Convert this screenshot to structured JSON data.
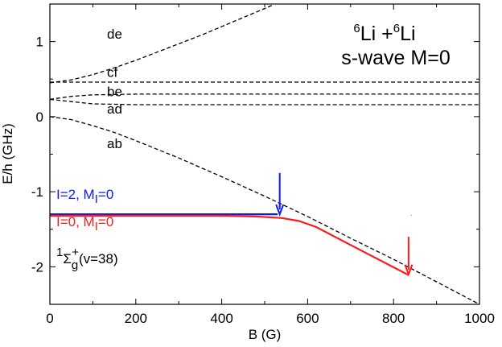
{
  "chart_data": {
    "type": "line",
    "title_lines": [
      "6Li + 6Li",
      "s-wave M=0"
    ],
    "title_parts": {
      "sup1": "6",
      "elem1": "Li +",
      "sup2": "6",
      "elem2": "Li",
      "line2": "s-wave M=0"
    },
    "xlabel": "B (G)",
    "ylabel": "E/h (GHz)",
    "xlim": [
      0,
      1000
    ],
    "ylim": [
      -2.5,
      1.5
    ],
    "xticks": [
      0,
      200,
      400,
      600,
      800,
      1000
    ],
    "yticks": [
      -2,
      -1,
      0,
      1
    ],
    "grid": false,
    "thresholds": [
      {
        "name": "de",
        "style": "dashed",
        "color": "#000000",
        "points": [
          [
            0,
            0.45
          ],
          [
            50,
            0.49
          ],
          [
            100,
            0.56
          ],
          [
            150,
            0.65
          ],
          [
            200,
            0.75
          ],
          [
            250,
            0.86
          ],
          [
            300,
            0.97
          ],
          [
            350,
            1.08
          ],
          [
            400,
            1.2
          ],
          [
            450,
            1.32
          ],
          [
            500,
            1.44
          ],
          [
            520,
            1.49
          ]
        ],
        "label_at": [
          133,
          1.04
        ]
      },
      {
        "name": "cf",
        "style": "dashed",
        "color": "#000000",
        "points": [
          [
            0,
            0.46
          ],
          [
            1000,
            0.46
          ]
        ],
        "label_at": [
          133,
          0.53
        ]
      },
      {
        "name": "be",
        "style": "dashed",
        "color": "#000000",
        "points": [
          [
            0,
            0.23
          ],
          [
            50,
            0.27
          ],
          [
            100,
            0.29
          ],
          [
            200,
            0.3
          ],
          [
            1000,
            0.3
          ]
        ],
        "label_at": [
          133,
          0.27
        ]
      },
      {
        "name": "ad",
        "style": "dashed",
        "color": "#000000",
        "points": [
          [
            0,
            0.23
          ],
          [
            50,
            0.2
          ],
          [
            100,
            0.17
          ],
          [
            200,
            0.16
          ],
          [
            1000,
            0.16
          ]
        ],
        "label_at": [
          133,
          0.04
        ]
      },
      {
        "name": "ab",
        "style": "dashed",
        "color": "#000000",
        "points": [
          [
            0,
            0.0
          ],
          [
            50,
            -0.04
          ],
          [
            100,
            -0.12
          ],
          [
            150,
            -0.21
          ],
          [
            200,
            -0.32
          ],
          [
            300,
            -0.55
          ],
          [
            400,
            -0.8
          ],
          [
            500,
            -1.06
          ],
          [
            600,
            -1.33
          ],
          [
            700,
            -1.62
          ],
          [
            800,
            -1.9
          ],
          [
            900,
            -2.2
          ],
          [
            970,
            -2.41
          ],
          [
            1000,
            -2.5
          ]
        ],
        "label_at": [
          133,
          -0.42
        ]
      }
    ],
    "series": [
      {
        "name": "I=2, M_I=0",
        "label_main": "I=2, M",
        "label_sub": "I",
        "label_tail": "=0",
        "color": "#0a1aff",
        "points": [
          [
            0,
            -1.3
          ],
          [
            530,
            -1.3
          ]
        ],
        "label_at": [
          5,
          -1.08
        ]
      },
      {
        "name": "I=0, M_I=0",
        "label_main": "I=0, M",
        "label_sub": "I",
        "label_tail": "=0",
        "color": "#ff1a1a",
        "points": [
          [
            0,
            -1.32
          ],
          [
            400,
            -1.32
          ],
          [
            480,
            -1.33
          ],
          [
            540,
            -1.35
          ],
          [
            580,
            -1.39
          ],
          [
            620,
            -1.47
          ],
          [
            700,
            -1.71
          ],
          [
            835,
            -2.11
          ]
        ],
        "label_at": [
          5,
          -1.45
        ]
      }
    ],
    "arrows": [
      {
        "color": "#0a1aff",
        "x": 535,
        "y_from": -0.75,
        "y_to": -1.3
      },
      {
        "color": "#ff1a1a",
        "x": 835,
        "y_from": -1.6,
        "y_to": -2.1
      }
    ],
    "state_label": {
      "sup": "1",
      "main": "Σ",
      "sub": "g",
      "supplus": "+",
      "tail": "(v=38)",
      "at": [
        5,
        -1.97
      ]
    }
  }
}
